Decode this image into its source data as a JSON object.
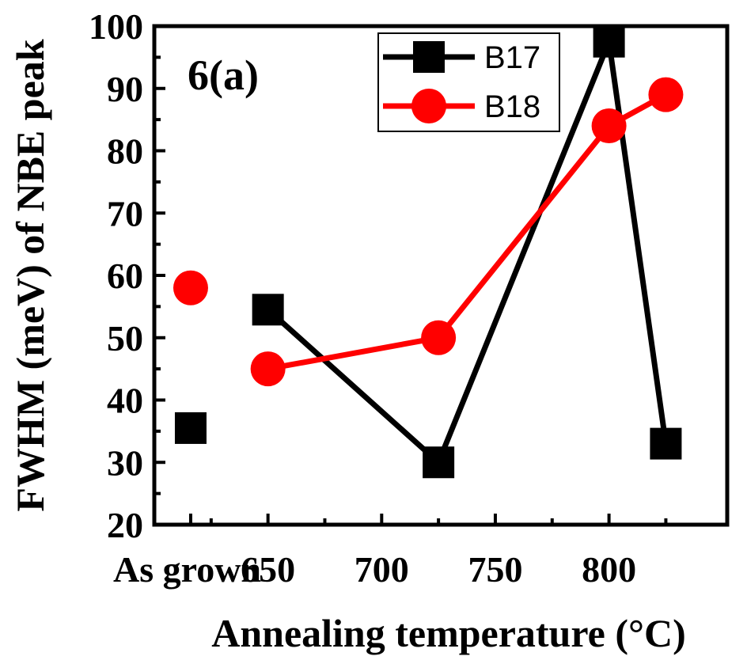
{
  "chart_data": {
    "type": "line",
    "panel_label": "6(a)",
    "xlabel": "Annealing temperature (°C)",
    "ylabel": "FWHM (meV) of NBE peak",
    "ylim": [
      20,
      100
    ],
    "yticks": [
      20,
      30,
      40,
      50,
      60,
      70,
      80,
      90,
      100
    ],
    "xlim": [
      600,
      852
    ],
    "xticks": [
      650,
      700,
      750,
      800
    ],
    "xtick_minor": [
      625,
      675,
      725,
      775,
      825
    ],
    "xtick_extra_label": {
      "x": 616,
      "text": "As grown"
    },
    "legend_position": "top-right",
    "series": [
      {
        "name": "B17",
        "color": "#000000",
        "marker": "square",
        "points": [
          {
            "x": 616,
            "y": 35.5,
            "connected": false
          },
          {
            "x": 650,
            "y": 54.5,
            "connected": true
          },
          {
            "x": 725,
            "y": 30,
            "connected": true
          },
          {
            "x": 800,
            "y": 97.5,
            "connected": true
          },
          {
            "x": 825,
            "y": 33,
            "connected": true
          }
        ]
      },
      {
        "name": "B18",
        "color": "#ff0000",
        "marker": "circle",
        "points": [
          {
            "x": 616,
            "y": 58,
            "connected": false
          },
          {
            "x": 650,
            "y": 45,
            "connected": true
          },
          {
            "x": 725,
            "y": 50,
            "connected": true
          },
          {
            "x": 800,
            "y": 84,
            "connected": true
          },
          {
            "x": 825,
            "y": 89,
            "connected": true
          }
        ]
      }
    ]
  }
}
